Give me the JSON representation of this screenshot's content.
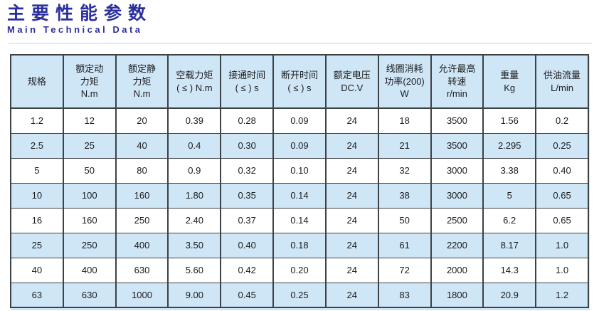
{
  "page": {
    "title": "主要性能参数",
    "subtitle": "Main Technical Data"
  },
  "colors": {
    "accent_blue": "#2B2F9E",
    "stripe_blue": "#cfe6f7",
    "border_dark": "#3d4247",
    "divider_blue": "#dcebf7"
  },
  "table": {
    "headers": [
      "规格",
      "额定动\n力矩\nN.m",
      "额定静\n力矩\nN.m",
      "空载力矩\n( ≤ ) N.m",
      "接通时间\n( ≤ ) s",
      "断开时间\n( ≤ ) s",
      "额定电压\nDC.V",
      "线圈消耗\n功率(200)\nW",
      "允许最高\n转速\nr/min",
      "重量\nKg",
      "供油流量\nL/min"
    ],
    "rows": [
      [
        "1.2",
        "12",
        "20",
        "0.39",
        "0.28",
        "0.09",
        "24",
        "18",
        "3500",
        "1.56",
        "0.2"
      ],
      [
        "2.5",
        "25",
        "40",
        "0.4",
        "0.30",
        "0.09",
        "24",
        "21",
        "3500",
        "2.295",
        "0.25"
      ],
      [
        "5",
        "50",
        "80",
        "0.9",
        "0.32",
        "0.10",
        "24",
        "32",
        "3000",
        "3.38",
        "0.40"
      ],
      [
        "10",
        "100",
        "160",
        "1.80",
        "0.35",
        "0.14",
        "24",
        "38",
        "3000",
        "5",
        "0.65"
      ],
      [
        "16",
        "160",
        "250",
        "2.40",
        "0.37",
        "0.14",
        "24",
        "50",
        "2500",
        "6.2",
        "0.65"
      ],
      [
        "25",
        "250",
        "400",
        "3.50",
        "0.40",
        "0.18",
        "24",
        "61",
        "2200",
        "8.17",
        "1.0"
      ],
      [
        "40",
        "400",
        "630",
        "5.60",
        "0.42",
        "0.20",
        "24",
        "72",
        "2000",
        "14.3",
        "1.0"
      ],
      [
        "63",
        "630",
        "1000",
        "9.00",
        "0.45",
        "0.25",
        "24",
        "83",
        "1800",
        "20.9",
        "1.2"
      ]
    ]
  }
}
